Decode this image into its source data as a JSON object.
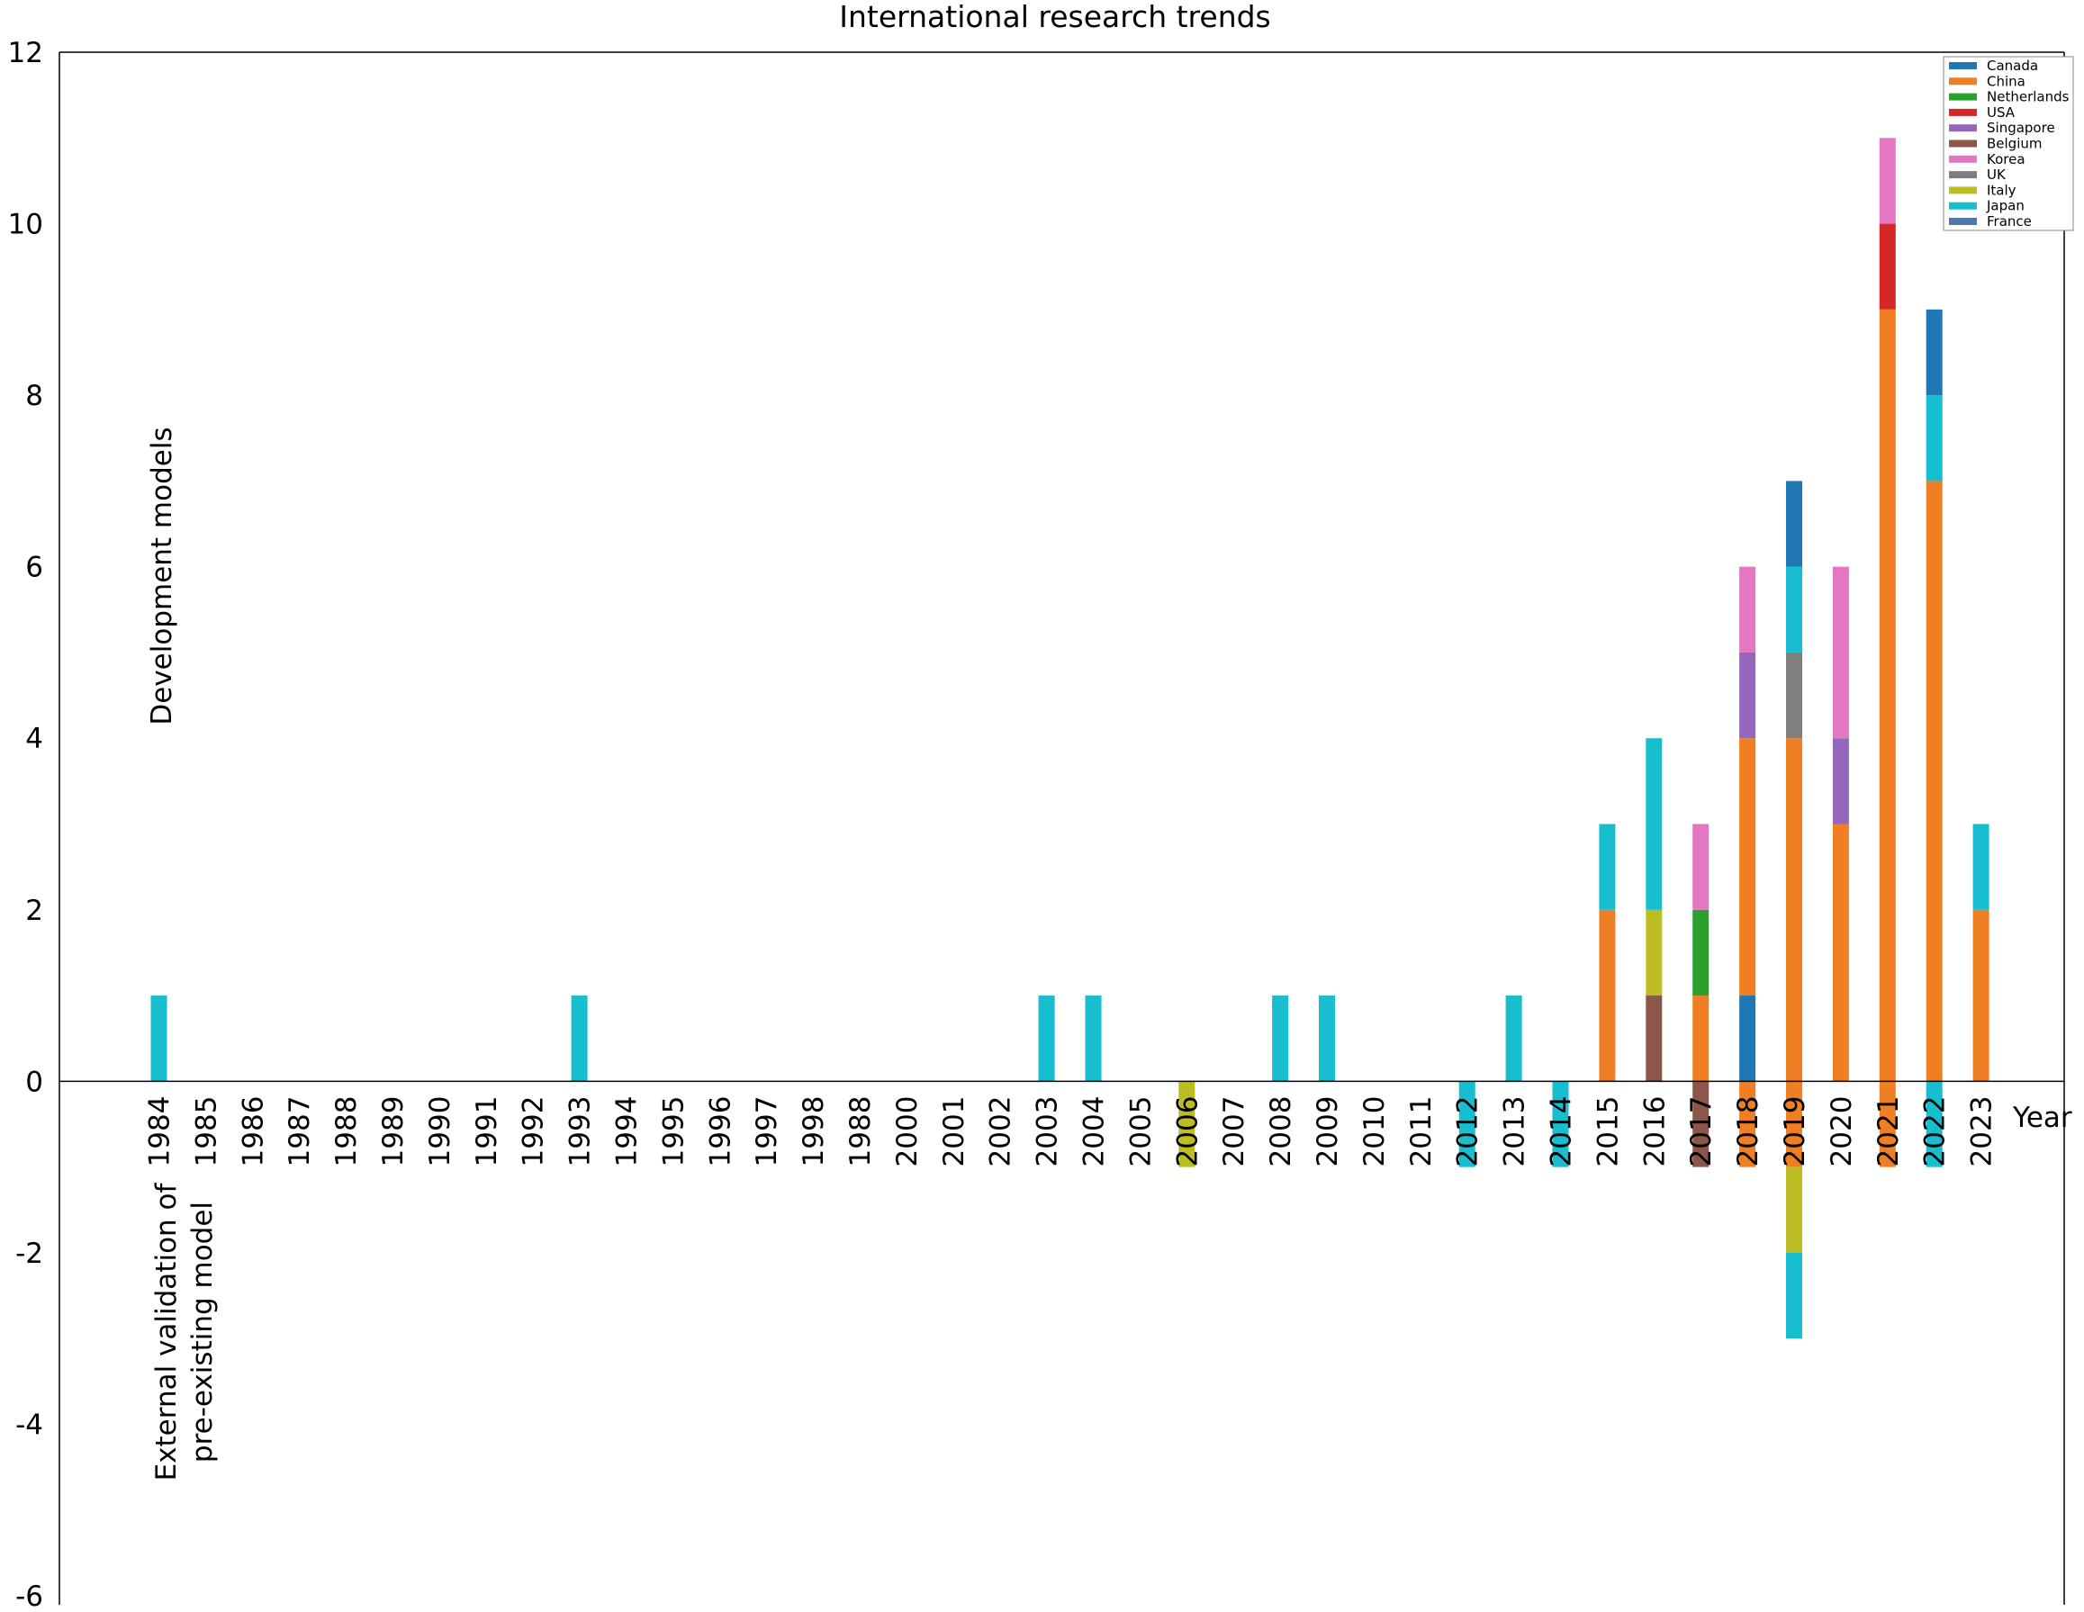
{
  "chart_data": {
    "type": "bar",
    "stacked": true,
    "title": "International research trends",
    "xlabel": "Year",
    "ylabel_upper": "Development models",
    "ylabel_lower_line1": "External validation of",
    "ylabel_lower_line2": "pre-existing model",
    "ylim": [
      -6,
      12
    ],
    "yticks": [
      12,
      10,
      8,
      6,
      4,
      2,
      0,
      -2,
      -4,
      -6
    ],
    "grid": false,
    "legend_position": "top-right",
    "categories": [
      "1984",
      "1985",
      "1986",
      "1987",
      "1988",
      "1989",
      "1990",
      "1991",
      "1992",
      "1993",
      "1994",
      "1995",
      "1996",
      "1997",
      "1998",
      "1988",
      "2000",
      "2001",
      "2002",
      "2003",
      "2004",
      "2005",
      "2006",
      "2007",
      "2008",
      "2009",
      "2010",
      "2011",
      "2012",
      "2013",
      "2014",
      "2015",
      "2016",
      "2017",
      "2018",
      "2019",
      "2020",
      "2021",
      "2022",
      "2023"
    ],
    "series": [
      {
        "name": "Canada",
        "color": "#1f77b4",
        "values": [
          0,
          0,
          0,
          0,
          0,
          0,
          0,
          0,
          0,
          0,
          0,
          0,
          0,
          0,
          0,
          0,
          0,
          0,
          0,
          0,
          0,
          0,
          0,
          0,
          0,
          0,
          0,
          0,
          0,
          0,
          0,
          0,
          0,
          0,
          1,
          1,
          0,
          0,
          1,
          0
        ]
      },
      {
        "name": "China",
        "color": "#f07f23",
        "values": [
          0,
          0,
          0,
          0,
          0,
          0,
          0,
          0,
          0,
          0,
          0,
          0,
          0,
          0,
          0,
          0,
          0,
          0,
          0,
          0,
          0,
          0,
          0,
          0,
          0,
          0,
          0,
          0,
          0,
          0,
          0,
          2,
          0,
          1,
          3,
          4,
          3,
          9,
          7,
          2
        ]
      },
      {
        "name": "Netherlands",
        "color": "#2ca02c",
        "values": [
          0,
          0,
          0,
          0,
          0,
          0,
          0,
          0,
          0,
          0,
          0,
          0,
          0,
          0,
          0,
          0,
          0,
          0,
          0,
          0,
          0,
          0,
          0,
          0,
          0,
          0,
          0,
          0,
          0,
          0,
          0,
          0,
          0,
          1,
          0,
          0,
          0,
          0,
          0,
          0
        ]
      },
      {
        "name": "USA",
        "color": "#d62728",
        "values": [
          0,
          0,
          0,
          0,
          0,
          0,
          0,
          0,
          0,
          0,
          0,
          0,
          0,
          0,
          0,
          0,
          0,
          0,
          0,
          0,
          0,
          0,
          0,
          0,
          0,
          0,
          0,
          0,
          0,
          0,
          0,
          0,
          0,
          0,
          0,
          0,
          0,
          1,
          0,
          0
        ]
      },
      {
        "name": "Singapore",
        "color": "#9467bd",
        "values": [
          0,
          0,
          0,
          0,
          0,
          0,
          0,
          0,
          0,
          0,
          0,
          0,
          0,
          0,
          0,
          0,
          0,
          0,
          0,
          0,
          0,
          0,
          0,
          0,
          0,
          0,
          0,
          0,
          0,
          0,
          0,
          0,
          0,
          0,
          1,
          0,
          1,
          0,
          0,
          0
        ]
      },
      {
        "name": "Belgium",
        "color": "#8c564b",
        "values": [
          0,
          0,
          0,
          0,
          0,
          0,
          0,
          0,
          0,
          0,
          0,
          0,
          0,
          0,
          0,
          0,
          0,
          0,
          0,
          0,
          0,
          0,
          0,
          0,
          0,
          0,
          0,
          0,
          0,
          0,
          0,
          0,
          1,
          -1,
          0,
          0,
          0,
          0,
          0,
          0
        ]
      },
      {
        "name": "Korea",
        "color": "#e377c2",
        "values": [
          0,
          0,
          0,
          0,
          0,
          0,
          0,
          0,
          0,
          0,
          0,
          0,
          0,
          0,
          0,
          0,
          0,
          0,
          0,
          0,
          0,
          0,
          0,
          0,
          0,
          0,
          0,
          0,
          0,
          0,
          0,
          0,
          0,
          1,
          1,
          0,
          2,
          1,
          0,
          0
        ]
      },
      {
        "name": "UK",
        "color": "#7f7f7f",
        "values": [
          0,
          0,
          0,
          0,
          0,
          0,
          0,
          0,
          0,
          0,
          0,
          0,
          0,
          0,
          0,
          0,
          0,
          0,
          0,
          0,
          0,
          0,
          0,
          0,
          0,
          0,
          0,
          0,
          0,
          0,
          0,
          0,
          0,
          0,
          0,
          1,
          0,
          0,
          0,
          0
        ]
      },
      {
        "name": "Italy",
        "color": "#bcbd22",
        "values": [
          0,
          0,
          0,
          0,
          0,
          0,
          0,
          0,
          0,
          0,
          0,
          0,
          0,
          0,
          0,
          0,
          0,
          0,
          0,
          0,
          0,
          0,
          -1,
          0,
          0,
          0,
          0,
          0,
          0,
          0,
          0,
          0,
          1,
          0,
          0,
          0,
          0,
          0,
          0,
          0
        ]
      },
      {
        "name": "Japan",
        "color": "#17becf",
        "values": [
          1,
          0,
          0,
          0,
          0,
          0,
          0,
          0,
          0,
          1,
          0,
          0,
          0,
          0,
          0,
          0,
          0,
          0,
          0,
          1,
          1,
          0,
          0,
          0,
          1,
          1,
          0,
          0,
          0,
          1,
          0,
          1,
          2,
          0,
          0,
          1,
          0,
          0,
          1,
          1
        ]
      },
      {
        "name": "France",
        "color": "#4e79a7",
        "values": [
          0,
          0,
          0,
          0,
          0,
          0,
          0,
          0,
          0,
          0,
          0,
          0,
          0,
          0,
          0,
          0,
          0,
          0,
          0,
          0,
          0,
          0,
          0,
          0,
          0,
          0,
          0,
          0,
          0,
          0,
          0,
          0,
          0,
          0,
          0,
          0,
          0,
          0,
          0,
          0
        ]
      }
    ],
    "negative_stacks": [
      {
        "category": "2006",
        "segments": [
          {
            "name": "Italy",
            "value": -1
          }
        ]
      },
      {
        "category": "2012",
        "segments": [
          {
            "name": "Japan",
            "value": -1
          }
        ]
      },
      {
        "category": "2014",
        "segments": [
          {
            "name": "Japan",
            "value": -1
          }
        ]
      },
      {
        "category": "2017",
        "segments": [
          {
            "name": "Belgium",
            "value": -1
          }
        ]
      },
      {
        "category": "2018",
        "segments": [
          {
            "name": "China",
            "value": -1
          }
        ]
      },
      {
        "category": "2019",
        "segments": [
          {
            "name": "China",
            "value": -1
          },
          {
            "name": "Italy",
            "value": -1
          },
          {
            "name": "Japan",
            "value": -1
          }
        ]
      },
      {
        "category": "2021",
        "segments": [
          {
            "name": "China",
            "value": -1
          }
        ]
      },
      {
        "category": "2022",
        "segments": [
          {
            "name": "Japan",
            "value": -1
          }
        ]
      }
    ],
    "positive_stacks": [
      {
        "category": "1984",
        "segments": [
          {
            "name": "Japan",
            "value": 1
          }
        ]
      },
      {
        "category": "1993",
        "segments": [
          {
            "name": "Japan",
            "value": 1
          }
        ]
      },
      {
        "category": "2003",
        "segments": [
          {
            "name": "Japan",
            "value": 1
          }
        ]
      },
      {
        "category": "2004",
        "segments": [
          {
            "name": "Japan",
            "value": 1
          }
        ]
      },
      {
        "category": "2008",
        "segments": [
          {
            "name": "Japan",
            "value": 1
          }
        ]
      },
      {
        "category": "2009",
        "segments": [
          {
            "name": "Japan",
            "value": 1
          }
        ]
      },
      {
        "category": "2013",
        "segments": [
          {
            "name": "Japan",
            "value": 1
          }
        ]
      },
      {
        "category": "2015",
        "segments": [
          {
            "name": "China",
            "value": 2
          },
          {
            "name": "Japan",
            "value": 1
          }
        ]
      },
      {
        "category": "2016",
        "segments": [
          {
            "name": "Belgium",
            "value": 1
          },
          {
            "name": "Italy",
            "value": 1
          },
          {
            "name": "Japan",
            "value": 2
          }
        ]
      },
      {
        "category": "2017",
        "segments": [
          {
            "name": "China",
            "value": 1
          },
          {
            "name": "Netherlands",
            "value": 1
          },
          {
            "name": "Korea",
            "value": 1
          }
        ]
      },
      {
        "category": "2018",
        "segments": [
          {
            "name": "Canada",
            "value": 1
          },
          {
            "name": "China",
            "value": 3
          },
          {
            "name": "Singapore",
            "value": 1
          },
          {
            "name": "Korea",
            "value": 1
          }
        ]
      },
      {
        "category": "2019",
        "segments": [
          {
            "name": "China",
            "value": 4
          },
          {
            "name": "UK",
            "value": 1
          },
          {
            "name": "Japan",
            "value": 1
          },
          {
            "name": "Canada",
            "value": 1
          }
        ]
      },
      {
        "category": "2020",
        "segments": [
          {
            "name": "China",
            "value": 3
          },
          {
            "name": "Singapore",
            "value": 1
          },
          {
            "name": "Korea",
            "value": 2
          }
        ]
      },
      {
        "category": "2021",
        "segments": [
          {
            "name": "China",
            "value": 9
          },
          {
            "name": "USA",
            "value": 1
          },
          {
            "name": "Korea",
            "value": 1
          }
        ]
      },
      {
        "category": "2022",
        "segments": [
          {
            "name": "China",
            "value": 7
          },
          {
            "name": "Japan",
            "value": 1
          },
          {
            "name": "Canada",
            "value": 1
          }
        ]
      },
      {
        "category": "2023",
        "segments": [
          {
            "name": "China",
            "value": 2
          },
          {
            "name": "Japan",
            "value": 1
          }
        ]
      }
    ]
  }
}
